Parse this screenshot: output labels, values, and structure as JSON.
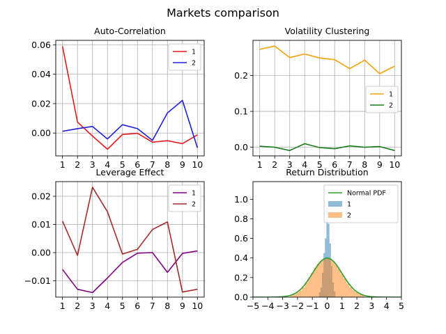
{
  "figure_title": "Markets comparison",
  "chart_data": [
    {
      "type": "line",
      "title": "Auto-Correlation",
      "xlabel": "",
      "ylabel": "",
      "x": [
        1,
        2,
        3,
        4,
        5,
        6,
        7,
        8,
        9,
        10
      ],
      "xticks": [
        1,
        2,
        3,
        4,
        5,
        6,
        7,
        8,
        9,
        10
      ],
      "xlim": [
        0.55,
        10.45
      ],
      "ylim": [
        -0.0155,
        0.063
      ],
      "yticks": [
        0.0,
        0.02,
        0.04,
        0.06
      ],
      "ytick_labels": [
        "0.00",
        "0.02",
        "0.04",
        "0.06"
      ],
      "grid": true,
      "legend": "upper-right",
      "series": [
        {
          "name": "1",
          "color": "#e31a1c",
          "values": [
            0.059,
            0.0075,
            -0.002,
            -0.011,
            -0.001,
            -0.0002,
            -0.0062,
            -0.0052,
            -0.0072,
            -0.0012
          ]
        },
        {
          "name": "2",
          "color": "#1f1fd6",
          "values": [
            0.0012,
            0.003,
            0.0045,
            -0.004,
            0.0057,
            0.003,
            -0.005,
            0.0137,
            0.0222,
            -0.01
          ]
        }
      ]
    },
    {
      "type": "line",
      "title": "Volatility Clustering",
      "xlabel": "",
      "ylabel": "",
      "x": [
        1,
        2,
        3,
        4,
        5,
        6,
        7,
        8,
        9,
        10
      ],
      "xticks": [
        1,
        2,
        3,
        4,
        5,
        6,
        7,
        8,
        9,
        10
      ],
      "xlim": [
        0.55,
        10.45
      ],
      "ylim": [
        -0.024,
        0.298
      ],
      "yticks": [
        0.0,
        0.1,
        0.2
      ],
      "ytick_labels": [
        "0.0",
        "0.1",
        "0.2"
      ],
      "grid": true,
      "legend": "center-right",
      "series": [
        {
          "name": "1",
          "color": "#f0a30a",
          "values": [
            0.273,
            0.282,
            0.25,
            0.26,
            0.249,
            0.244,
            0.219,
            0.243,
            0.205,
            0.226
          ]
        },
        {
          "name": "2",
          "color": "#1a7a1a",
          "values": [
            0.003,
            0.0,
            -0.009,
            0.01,
            -0.001,
            -0.004,
            0.004,
            0.0,
            0.002,
            -0.009
          ]
        }
      ]
    },
    {
      "type": "line",
      "title": "Leverage Effect",
      "xlabel": "",
      "ylabel": "",
      "x": [
        1,
        2,
        3,
        4,
        5,
        6,
        7,
        8,
        9,
        10
      ],
      "xticks": [
        1,
        2,
        3,
        4,
        5,
        6,
        7,
        8,
        9,
        10
      ],
      "xlim": [
        0.55,
        10.45
      ],
      "ylim": [
        -0.0158,
        0.0252
      ],
      "yticks": [
        -0.01,
        0.0,
        0.01,
        0.02
      ],
      "ytick_labels": [
        "−0.01",
        "0.00",
        "0.01",
        "0.02"
      ],
      "grid": true,
      "legend": "upper-right",
      "series": [
        {
          "name": "1",
          "color": "#800080",
          "values": [
            -0.006,
            -0.013,
            -0.0142,
            -0.009,
            -0.0035,
            -0.0002,
            0.0,
            -0.007,
            -0.0003,
            0.0006
          ]
        },
        {
          "name": "2",
          "color": "#a52a2a",
          "values": [
            0.0112,
            -0.001,
            0.0232,
            0.0145,
            -0.0005,
            0.0012,
            0.0082,
            0.0109,
            -0.014,
            -0.013
          ]
        }
      ]
    },
    {
      "type": "histogram",
      "title": "Return Distribution",
      "xlabel": "",
      "ylabel": "",
      "xlim": [
        -5,
        5
      ],
      "xticks": [
        -5,
        -4,
        -3,
        -2,
        -1,
        0,
        1,
        2,
        3,
        4,
        5
      ],
      "xtick_labels": [
        "−5",
        "−4",
        "−3",
        "−2",
        "−1",
        "0",
        "1",
        "2",
        "3",
        "4",
        "5"
      ],
      "ylim": [
        0,
        1.18
      ],
      "yticks": [
        0.0,
        0.2,
        0.4,
        0.6,
        0.8,
        1.0
      ],
      "ytick_labels": [
        "0.0",
        "0.2",
        "0.4",
        "0.6",
        "0.8",
        "1.0"
      ],
      "grid": false,
      "legend": "upper-right",
      "series": [
        {
          "name": "Normal PDF",
          "kind": "line",
          "color": "#2ca02c",
          "values": "normal(0,1) density"
        },
        {
          "name": "1",
          "kind": "hist",
          "color": "#1f77b4",
          "alpha": 0.5,
          "bins": [
            [
              -0.55,
              -0.45,
              0.05
            ],
            [
              -0.45,
              -0.35,
              0.1
            ],
            [
              -0.35,
              -0.25,
              0.25
            ],
            [
              -0.25,
              -0.15,
              0.45
            ],
            [
              -0.15,
              -0.05,
              0.6
            ],
            [
              -0.05,
              0.05,
              0.92
            ],
            [
              0.05,
              0.15,
              0.75
            ],
            [
              0.15,
              0.25,
              0.55
            ],
            [
              0.25,
              0.35,
              0.32
            ],
            [
              0.35,
              0.45,
              0.15
            ],
            [
              0.45,
              0.55,
              0.06
            ]
          ]
        },
        {
          "name": "2",
          "kind": "hist",
          "color": "#ff7f0e",
          "alpha": 0.5,
          "bins": [
            [
              -2.5,
              -2.3,
              0.02
            ],
            [
              -2.3,
              -2.1,
              0.03
            ],
            [
              -2.1,
              -1.9,
              0.05
            ],
            [
              -1.9,
              -1.7,
              0.07
            ],
            [
              -1.7,
              -1.5,
              0.1
            ],
            [
              -1.5,
              -1.3,
              0.15
            ],
            [
              -1.3,
              -1.1,
              0.2
            ],
            [
              -1.1,
              -0.9,
              0.25
            ],
            [
              -0.9,
              -0.7,
              0.3
            ],
            [
              -0.7,
              -0.5,
              0.34
            ],
            [
              -0.5,
              -0.3,
              0.37
            ],
            [
              -0.3,
              -0.1,
              0.39
            ],
            [
              -0.1,
              0.1,
              0.4
            ],
            [
              0.1,
              0.3,
              0.39
            ],
            [
              0.3,
              0.5,
              0.37
            ],
            [
              0.5,
              0.7,
              0.33
            ],
            [
              0.7,
              0.9,
              0.29
            ],
            [
              0.9,
              1.1,
              0.24
            ],
            [
              1.1,
              1.3,
              0.19
            ],
            [
              1.3,
              1.5,
              0.14
            ],
            [
              1.5,
              1.7,
              0.1
            ],
            [
              1.7,
              1.9,
              0.07
            ],
            [
              1.9,
              2.1,
              0.05
            ],
            [
              2.1,
              2.3,
              0.03
            ],
            [
              2.3,
              2.5,
              0.02
            ]
          ]
        }
      ]
    }
  ]
}
